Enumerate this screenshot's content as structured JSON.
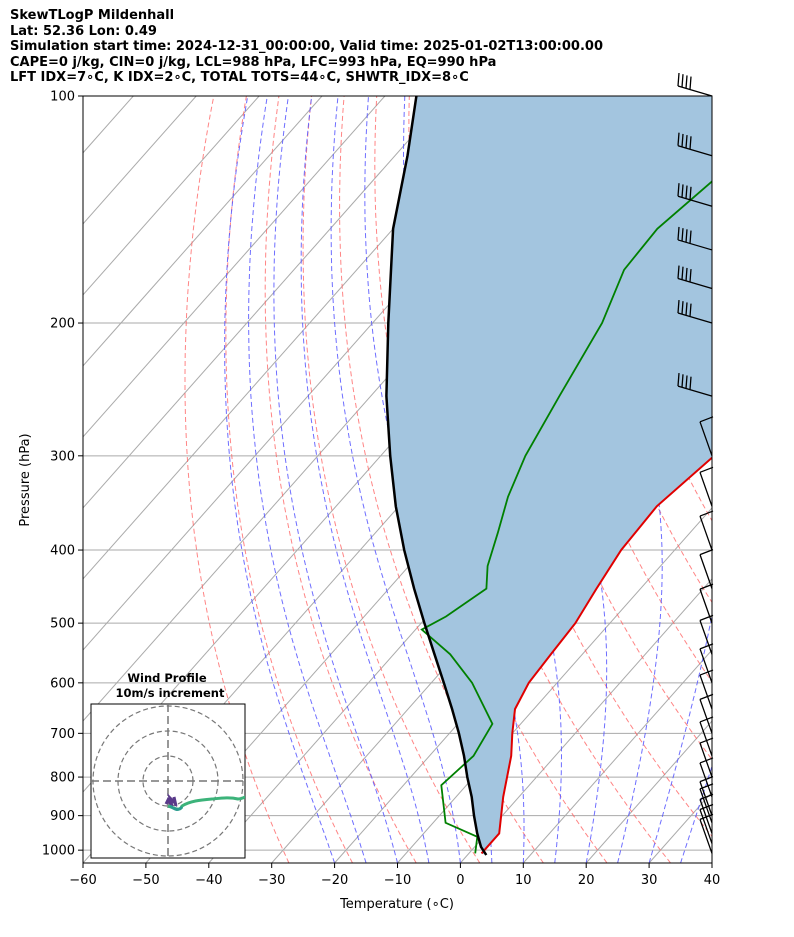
{
  "header": {
    "line1": "SkewTLogP Mildenhall",
    "line2": "Lat: 52.36   Lon: 0.49",
    "line3": "Simulation start time: 2024-12-31_00:00:00, Valid time: 2025-01-02T13:00:00.00",
    "line4": "CAPE=0 j/kg, CIN=0 j/kg, LCL=988 hPa, LFC=993 hPa, EQ=990 hPa",
    "line5": "LFT IDX=7∘C, K IDX=2∘C, TOTAL TOTS=44∘C, SHWTR_IDX=8∘C"
  },
  "axes": {
    "xlabel": "Temperature (∘C)",
    "ylabel": "Pressure (hPa)"
  },
  "inset": {
    "title_line1": "Wind Profile",
    "title_line2": "10m/s increment"
  },
  "colors": {
    "temperature": "#e00000",
    "dewpoint": "#008000",
    "parcel": "#000000",
    "cape_fill": "#a3c5df",
    "dry_adiabat": "#ff6666",
    "moist_adiabat": "#5555ff",
    "isotherm": "#aaaaaa"
  },
  "chart_data": {
    "type": "line",
    "chart_kind": "skew-T log-P",
    "xlim": [
      -60,
      40
    ],
    "ylim": [
      1040,
      100
    ],
    "y_scale": "log",
    "x_ticks": [
      -60,
      -50,
      -40,
      -30,
      -20,
      -10,
      0,
      10,
      20,
      30,
      40
    ],
    "x_tick_labels": [
      "−60",
      "−50",
      "−40",
      "−30",
      "−20",
      "−10",
      "0",
      "10",
      "20",
      "30",
      "40"
    ],
    "y_ticks": [
      1000,
      900,
      800,
      700,
      600,
      500,
      400,
      300,
      200,
      100
    ],
    "grid": true,
    "series": [
      {
        "key": "temperature",
        "pressure": [
          1010,
          950,
          850,
          750,
          700,
          650,
          600,
          550,
          500,
          450,
          400,
          350,
          300,
          250,
          200,
          150,
          120,
          100
        ],
        "values": [
          2,
          2,
          -2.5,
          -7,
          -10,
          -13,
          -14.5,
          -15,
          -15.5,
          -17,
          -18.5,
          -19,
          -17,
          -16,
          -15.5,
          -14,
          -12.5,
          -12.5
        ]
      },
      {
        "key": "dewpoint",
        "pressure": [
          1010,
          960,
          920,
          820,
          750,
          680,
          600,
          550,
          510,
          490,
          450,
          420,
          380,
          340,
          300,
          250,
          200,
          170,
          150,
          130,
          100
        ],
        "values": [
          1,
          -1,
          -8,
          -14,
          -13,
          -14.5,
          -23.5,
          -31,
          -39,
          -37,
          -34.5,
          -37.5,
          -40.5,
          -44,
          -47,
          -50,
          -53.5,
          -57.5,
          -58,
          -56,
          -54
        ]
      },
      {
        "key": "parcel",
        "pressure": [
          1015,
          990,
          950,
          900,
          850,
          800,
          750,
          700,
          650,
          600,
          550,
          500,
          450,
          400,
          350,
          300,
          250,
          200,
          150,
          120,
          100
        ],
        "values": [
          3,
          1,
          -1.5,
          -4.5,
          -7.5,
          -11,
          -14.5,
          -18.5,
          -23,
          -28,
          -33.5,
          -39.5,
          -46,
          -53,
          -60.5,
          -68.5,
          -77.5,
          -87.5,
          -100,
          -108,
          -115
        ]
      }
    ],
    "wind_barbs_hpa": [
      1010,
      980,
      950,
      920,
      900,
      850,
      800,
      750,
      700,
      650,
      600,
      550,
      500,
      450,
      400,
      350,
      300,
      250,
      200,
      180,
      160,
      140,
      120,
      100
    ],
    "wind_barb_speeds_kt": [
      15,
      15,
      10,
      10,
      10,
      10,
      10,
      10,
      10,
      10,
      10,
      10,
      10,
      10,
      10,
      10,
      25,
      35,
      40,
      45,
      45,
      45,
      45,
      45
    ]
  }
}
